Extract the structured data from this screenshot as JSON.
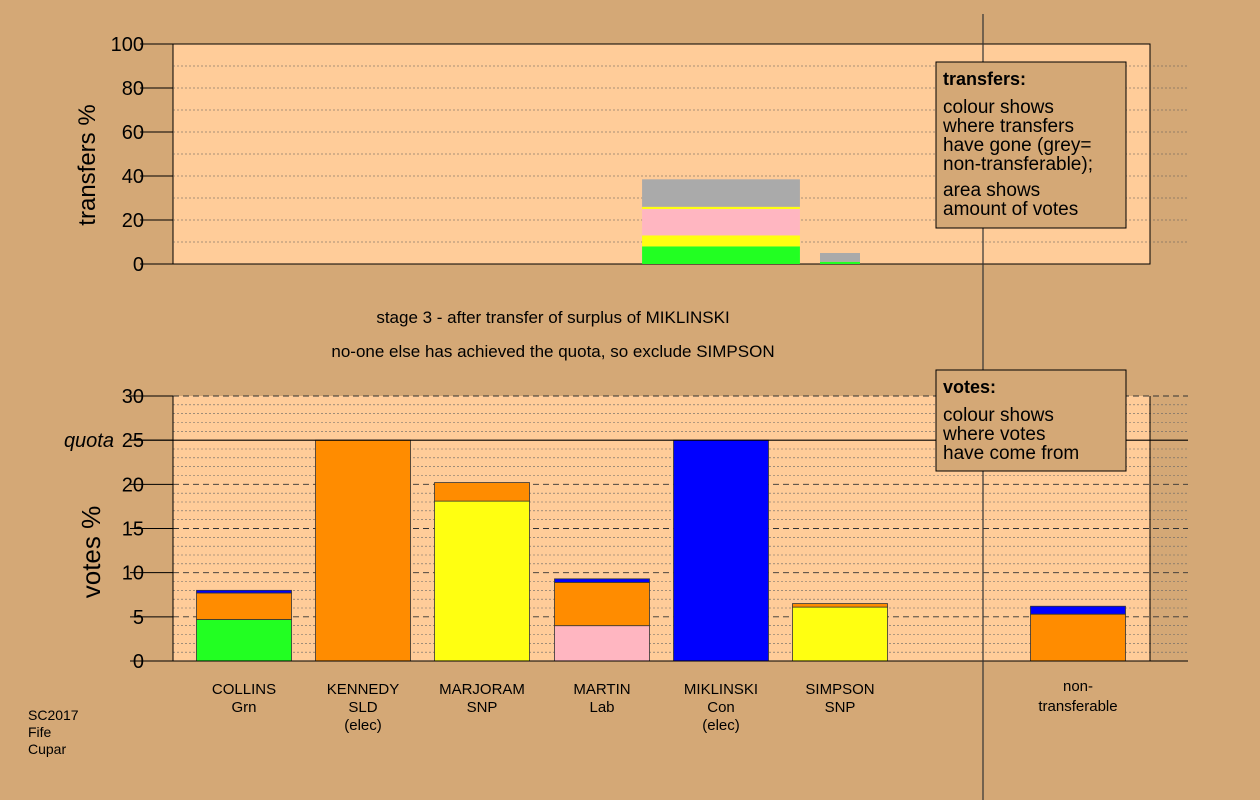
{
  "colors": {
    "background": "#D4A876",
    "panel": "#FFCC99",
    "green": "#22FF22",
    "orange": "#FF8C00",
    "yellow": "#FFFF11",
    "pink": "#FFB6C1",
    "blue": "#0000FF",
    "grey": "#AAAAAA"
  },
  "stage": {
    "line1": "stage 3 - after transfer of surplus of MIKLINSKI",
    "line2": "no-one else has achieved the quota, so exclude SIMPSON"
  },
  "transfers_box": {
    "title": "transfers:",
    "lines1": [
      "colour shows",
      "where transfers",
      "have gone (grey=",
      "non-transferable);"
    ],
    "lines2": [
      "area shows",
      "amount of votes"
    ]
  },
  "votes_box": {
    "title": "votes:",
    "lines": [
      "colour shows",
      "where votes",
      "have come from"
    ]
  },
  "footer": [
    "SC2017",
    "Fife",
    "Cupar"
  ],
  "candidates": [
    {
      "name": "COLLINS",
      "party": "Grn",
      "note": ""
    },
    {
      "name": "KENNEDY",
      "party": "SLD",
      "note": "(elec)"
    },
    {
      "name": "MARJORAM",
      "party": "SNP",
      "note": ""
    },
    {
      "name": "MARTIN",
      "party": "Lab",
      "note": ""
    },
    {
      "name": "MIKLINSKI",
      "party": "Con",
      "note": "(elec)"
    },
    {
      "name": "SIMPSON",
      "party": "SNP",
      "note": ""
    }
  ],
  "nontransferable_label": [
    "non-",
    "transferable"
  ],
  "chart_data": [
    {
      "type": "bar",
      "stacked": true,
      "ylabel": "transfers %",
      "ylim": [
        0,
        100
      ],
      "yticks": [
        0,
        20,
        40,
        60,
        80,
        100
      ],
      "bars": [
        {
          "candidate": "MIKLINSKI",
          "segments": [
            {
              "color": "green",
              "value": 8
            },
            {
              "color": "yellow",
              "value": 5
            },
            {
              "color": "pink",
              "value": 12
            },
            {
              "color": "yellow",
              "value": 1
            },
            {
              "color": "grey",
              "value": 12.5
            }
          ]
        },
        {
          "candidate": "SIMPSON",
          "segments": [
            {
              "color": "green",
              "value": 1
            },
            {
              "color": "grey",
              "value": 4
            }
          ]
        }
      ]
    },
    {
      "type": "bar",
      "stacked": true,
      "ylabel": "votes %",
      "quota_label": "quota",
      "quota": 25,
      "ylim": [
        0,
        30
      ],
      "yticks": [
        0,
        5,
        10,
        15,
        20,
        25,
        30
      ],
      "bars": [
        {
          "candidate": "COLLINS",
          "segments": [
            {
              "color": "green",
              "value": 4.7
            },
            {
              "color": "orange",
              "value": 3.0
            },
            {
              "color": "blue",
              "value": 0.3
            }
          ]
        },
        {
          "candidate": "KENNEDY",
          "segments": [
            {
              "color": "orange",
              "value": 25.0
            }
          ]
        },
        {
          "candidate": "MARJORAM",
          "segments": [
            {
              "color": "yellow",
              "value": 18.1
            },
            {
              "color": "orange",
              "value": 2.1
            }
          ]
        },
        {
          "candidate": "MARTIN",
          "segments": [
            {
              "color": "pink",
              "value": 4.0
            },
            {
              "color": "orange",
              "value": 4.9
            },
            {
              "color": "blue",
              "value": 0.4
            }
          ]
        },
        {
          "candidate": "MIKLINSKI",
          "segments": [
            {
              "color": "blue",
              "value": 25.0
            }
          ]
        },
        {
          "candidate": "SIMPSON",
          "segments": [
            {
              "color": "yellow",
              "value": 6.1
            },
            {
              "color": "orange",
              "value": 0.4
            }
          ]
        },
        {
          "candidate": "non-transferable",
          "segments": [
            {
              "color": "orange",
              "value": 5.3
            },
            {
              "color": "blue",
              "value": 0.9
            }
          ]
        }
      ]
    }
  ]
}
